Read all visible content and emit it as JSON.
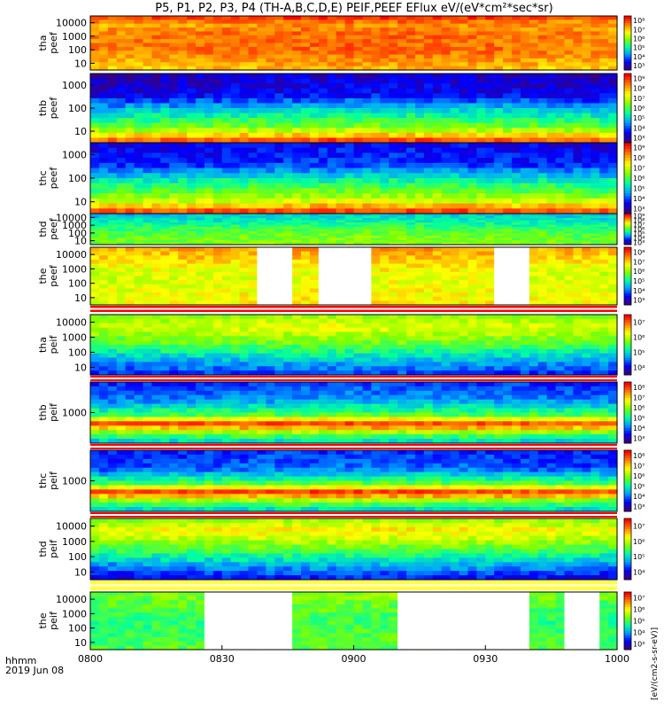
{
  "title": "P5, P1, P2, P3, P4 (TH-A,B,C,D,E) PEIF,PEEF EFlux eV/(eV*cm²*sec*sr)",
  "footer": {
    "line1": "hhmm",
    "line2": "2019 Jun 08"
  },
  "colorbar_unit": "[eV/(cm2-s-sr-eV)]",
  "chart_data": {
    "type": "heatmap",
    "x_axis": {
      "ticks": [
        "0800",
        "0830",
        "0900",
        "0930",
        "1000"
      ],
      "range": [
        "08:00",
        "10:00"
      ]
    },
    "colormap": [
      "#ffffff",
      "#3a007a",
      "#0000ff",
      "#00a0ff",
      "#00ffa0",
      "#80ff00",
      "#ffff00",
      "#ff8000",
      "#ff0000"
    ],
    "panels": [
      {
        "probe": "tha",
        "kind": "peef",
        "yticks": [
          "10",
          "100",
          "1000",
          "10000"
        ],
        "cbar_ticks": [
          "10³",
          "10⁴",
          "10⁵",
          "10⁶",
          "10⁷",
          "10⁸"
        ],
        "profile": [
          [
            0,
            0.75
          ],
          [
            0.35,
            0.85
          ],
          [
            0.65,
            0.85
          ],
          [
            0.85,
            0.8
          ],
          [
            1,
            0.95
          ]
        ]
      },
      {
        "probe": "thb",
        "kind": "peef",
        "yticks": [
          "10",
          "100",
          "1000"
        ],
        "cbar_ticks": [
          "10³",
          "10⁴",
          "10⁵",
          "10⁶",
          "10⁷",
          "10⁸",
          "10⁹"
        ],
        "profile": [
          [
            0,
            0.95
          ],
          [
            0.2,
            0.55
          ],
          [
            0.45,
            0.35
          ],
          [
            0.7,
            0.1
          ],
          [
            1,
            0.05
          ]
        ]
      },
      {
        "probe": "thc",
        "kind": "peef",
        "yticks": [
          "10",
          "100",
          "1000"
        ],
        "cbar_ticks": [
          "10³",
          "10⁴",
          "10⁵",
          "10⁶",
          "10⁷",
          "10⁸",
          "10⁹"
        ],
        "profile": [
          [
            0,
            0.95
          ],
          [
            0.2,
            0.6
          ],
          [
            0.45,
            0.4
          ],
          [
            0.7,
            0.15
          ],
          [
            1,
            0.1
          ]
        ]
      },
      {
        "probe": "thd",
        "kind": "peef",
        "yticks": [
          "10",
          "100",
          "1000",
          "10000"
        ],
        "cbar_ticks": [
          "10³",
          "10⁴",
          "10⁵",
          "10⁶",
          "10⁷",
          "10⁸",
          "10⁹"
        ],
        "profile": [
          [
            0,
            0.55
          ],
          [
            0.4,
            0.5
          ],
          [
            0.7,
            0.4
          ],
          [
            1,
            0.3
          ]
        ]
      },
      {
        "probe": "the",
        "kind": "peef",
        "yticks": [
          "10",
          "100",
          "1000",
          "10000"
        ],
        "cbar_ticks": [
          "10³",
          "10⁴",
          "10⁵",
          "10⁶",
          "10⁷",
          "10⁸"
        ],
        "profile": [
          [
            0,
            0.7
          ],
          [
            0.5,
            0.65
          ],
          [
            1,
            0.8
          ]
        ]
      },
      {
        "probe": "tha",
        "kind": "peif",
        "yticks": [
          "10",
          "100",
          "1000",
          "10000"
        ],
        "cbar_ticks": [
          "10⁴",
          "10⁵",
          "10⁶",
          "10⁷"
        ],
        "profile": [
          [
            0,
            0.15
          ],
          [
            0.25,
            0.3
          ],
          [
            0.5,
            0.5
          ],
          [
            0.8,
            0.65
          ],
          [
            1,
            0.55
          ]
        ]
      },
      {
        "probe": "thb",
        "kind": "peif",
        "yticks": [
          "1000"
        ],
        "cbar_ticks": [
          "10³",
          "10⁴",
          "10⁵",
          "10⁶",
          "10⁷",
          "10⁸"
        ],
        "profile": [
          [
            0,
            0.3
          ],
          [
            0.2,
            0.6
          ],
          [
            0.3,
            0.95
          ],
          [
            0.45,
            0.5
          ],
          [
            0.7,
            0.25
          ],
          [
            1,
            0.15
          ]
        ]
      },
      {
        "probe": "thc",
        "kind": "peif",
        "yticks": [
          "1000"
        ],
        "cbar_ticks": [
          "10³",
          "10⁴",
          "10⁵",
          "10⁶",
          "10⁷",
          "10⁸"
        ],
        "profile": [
          [
            0,
            0.3
          ],
          [
            0.2,
            0.6
          ],
          [
            0.3,
            0.95
          ],
          [
            0.45,
            0.5
          ],
          [
            0.7,
            0.2
          ],
          [
            1,
            0.15
          ]
        ]
      },
      {
        "probe": "thd",
        "kind": "peif",
        "yticks": [
          "10",
          "100",
          "1000",
          "10000"
        ],
        "cbar_ticks": [
          "10⁴",
          "10⁵",
          "10⁶",
          "10⁷"
        ],
        "profile": [
          [
            0,
            0.1
          ],
          [
            0.2,
            0.25
          ],
          [
            0.5,
            0.5
          ],
          [
            0.8,
            0.7
          ],
          [
            1,
            0.55
          ]
        ]
      },
      {
        "probe": "the",
        "kind": "peif",
        "yticks": [
          "10",
          "100",
          "1000",
          "10000"
        ],
        "cbar_ticks": [
          "10³",
          "10⁴",
          "10⁵",
          "10⁶",
          "10⁷"
        ],
        "profile": [
          [
            0,
            0.5
          ],
          [
            0.5,
            0.45
          ],
          [
            1,
            0.55
          ]
        ]
      }
    ],
    "data_gaps": [
      {
        "panel": 4,
        "from": "08:38",
        "to": "08:46"
      },
      {
        "panel": 4,
        "from": "08:52",
        "to": "09:04"
      },
      {
        "panel": 4,
        "from": "09:32",
        "to": "09:40"
      },
      {
        "panel": 9,
        "from": "08:26",
        "to": "08:46"
      },
      {
        "panel": 9,
        "from": "09:10",
        "to": "09:40"
      },
      {
        "panel": 9,
        "from": "09:48",
        "to": "09:56"
      }
    ]
  }
}
